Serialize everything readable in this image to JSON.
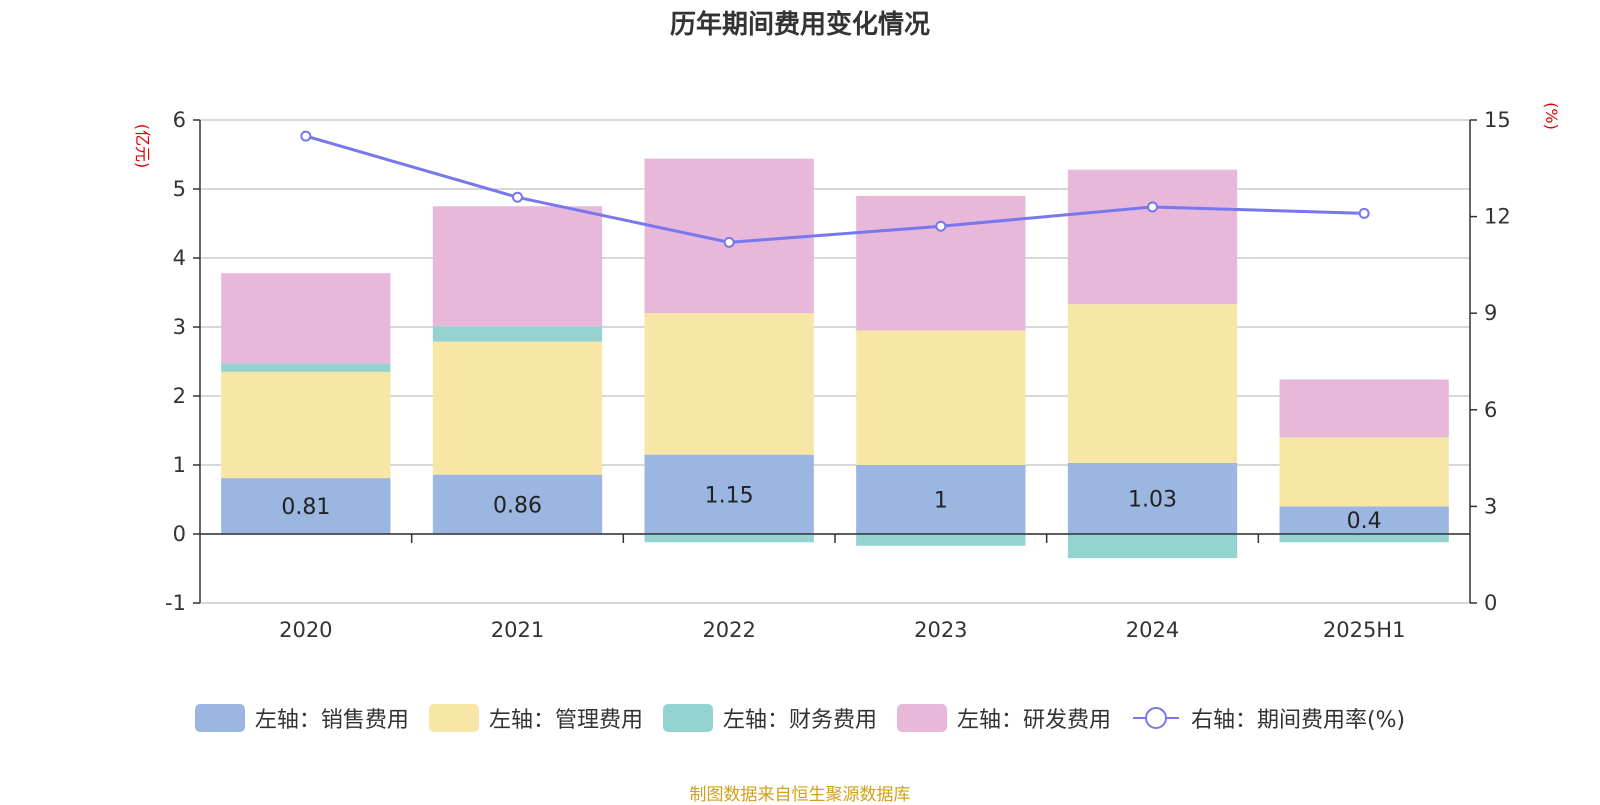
{
  "title": "历年期间费用变化情况",
  "left_unit": "(亿元)",
  "right_unit": "(%)",
  "source": "制图数据来自恒生聚源数据库",
  "colors": {
    "sales": "#9bb6e0",
    "admin": "#f7e6a6",
    "finance": "#95d3d3",
    "rd": "#e7b8da",
    "rate_line": "#7777ee"
  },
  "chart_data": {
    "type": "bar",
    "stacked": true,
    "categories": [
      "2020",
      "2021",
      "2022",
      "2023",
      "2024",
      "2025H1"
    ],
    "y_left": {
      "ticks": [
        "-1",
        "0",
        "1",
        "2",
        "3",
        "4",
        "5",
        "6"
      ],
      "range": [
        -1,
        6
      ]
    },
    "y_right": {
      "ticks": [
        "0",
        "3",
        "6",
        "9",
        "12",
        "15"
      ],
      "range": [
        0,
        15
      ]
    },
    "series": [
      {
        "key": "sales",
        "name": "左轴：销售费用",
        "axis": "left",
        "type": "bar",
        "values": [
          0.81,
          0.86,
          1.15,
          1,
          1.03,
          0.4
        ],
        "labels": [
          "0.81",
          "0.86",
          "1.15",
          "1",
          "1.03",
          "0.4"
        ]
      },
      {
        "key": "admin",
        "name": "左轴：管理费用",
        "axis": "left",
        "type": "bar",
        "values": [
          1.54,
          1.93,
          2.05,
          1.95,
          2.3,
          1.0
        ]
      },
      {
        "key": "finance",
        "name": "左轴：财务费用",
        "axis": "left",
        "type": "bar",
        "values": [
          0.12,
          0.22,
          -0.12,
          -0.17,
          -0.35,
          -0.12
        ]
      },
      {
        "key": "rd",
        "name": "左轴：研发费用",
        "axis": "left",
        "type": "bar",
        "values": [
          1.31,
          1.74,
          2.24,
          1.95,
          1.95,
          0.84
        ]
      },
      {
        "key": "rate",
        "name": "右轴：期间费用率(%)",
        "axis": "right",
        "type": "line",
        "values": [
          14.5,
          12.6,
          11.2,
          11.7,
          12.3,
          12.1
        ]
      }
    ]
  }
}
